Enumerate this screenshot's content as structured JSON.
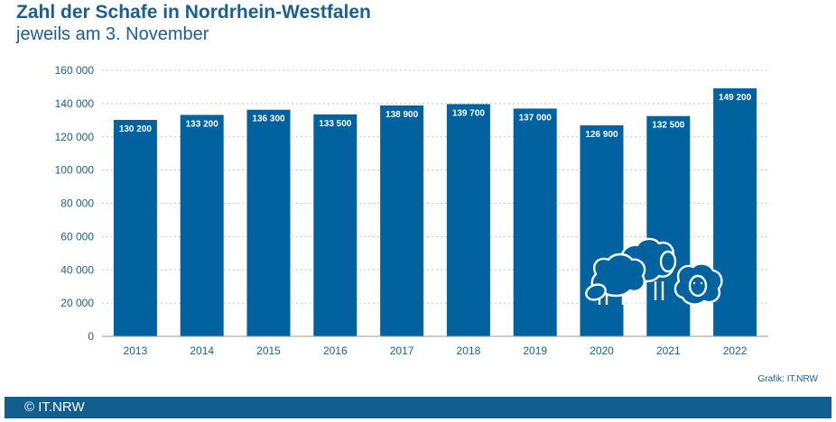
{
  "header": {
    "title": "Zahl der Schafe in Nordrhein-Westfalen",
    "subtitle": "jeweils am 3. November"
  },
  "credit": "Grafik: IT.NRW",
  "footer": {
    "text": "© IT.NRW"
  },
  "colors": {
    "bar": "#0063a0",
    "text": "#1a5f94",
    "footer": "#115e8f",
    "grid": "#c8c8c8"
  },
  "illustration": {
    "icon": "sheep-icon",
    "count": 3
  },
  "chart_data": {
    "type": "bar",
    "categories": [
      "2013",
      "2014",
      "2015",
      "2016",
      "2017",
      "2018",
      "2019",
      "2020",
      "2021",
      "2022"
    ],
    "values": [
      130200,
      133200,
      136300,
      133500,
      138900,
      139700,
      137000,
      126900,
      132500,
      149200
    ],
    "value_labels": [
      "130 200",
      "133 200",
      "136 300",
      "133 500",
      "138 900",
      "139 700",
      "137 000",
      "126 900",
      "132 500",
      "149 200"
    ],
    "yticks": [
      0,
      20000,
      40000,
      60000,
      80000,
      100000,
      120000,
      140000,
      160000
    ],
    "ytick_labels": [
      "0",
      "20 000",
      "40 000",
      "60 000",
      "80 000",
      "100 000",
      "120 000",
      "140 000",
      "160 000"
    ],
    "ylim": [
      0,
      160000
    ],
    "grid": true,
    "grid_style": "dotted",
    "legend": "none"
  }
}
